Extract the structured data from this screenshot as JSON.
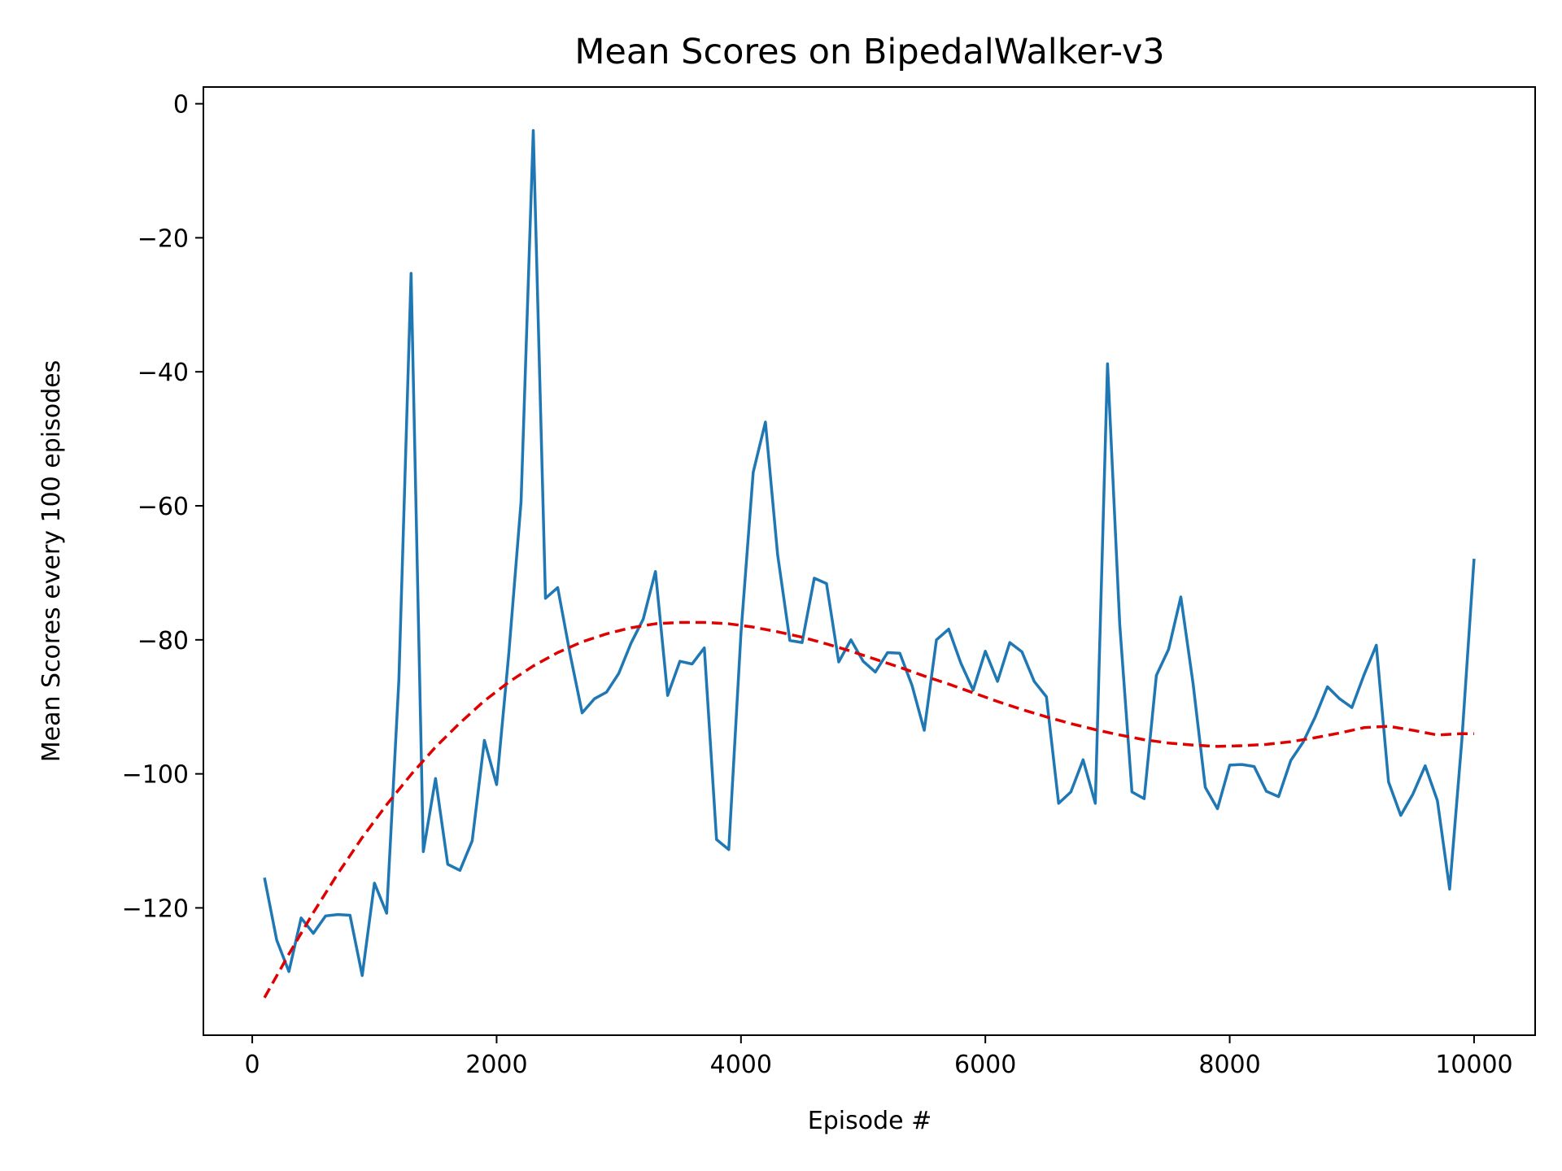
{
  "chart_data": {
    "type": "line",
    "title": "Mean Scores on BipedalWalker-v3",
    "xlabel": "Episode #",
    "ylabel": "Mean Scores every 100 episodes",
    "xlim": [
      -400,
      10500
    ],
    "ylim": [
      -139,
      2.5
    ],
    "xticks": [
      0,
      2000,
      4000,
      6000,
      8000,
      10000
    ],
    "xtick_labels": [
      "0",
      "2000",
      "4000",
      "6000",
      "8000",
      "10000"
    ],
    "yticks": [
      0,
      -20,
      -40,
      -60,
      -80,
      -100,
      -120
    ],
    "ytick_labels": [
      "0",
      "−20",
      "−40",
      "−60",
      "−80",
      "−100",
      "−120"
    ],
    "grid": false,
    "colors": {
      "scores": "#1f77b4",
      "trend": "#e00000"
    },
    "series": [
      {
        "style": "solid",
        "x": [
          100,
          200,
          300,
          400,
          500,
          600,
          700,
          800,
          900,
          1000,
          1100,
          1200,
          1300,
          1400,
          1500,
          1600,
          1700,
          1800,
          1900,
          2000,
          2100,
          2200,
          2300,
          2400,
          2500,
          2600,
          2700,
          2800,
          2900,
          3000,
          3100,
          3200,
          3300,
          3400,
          3500,
          3600,
          3700,
          3800,
          3900,
          4000,
          4100,
          4200,
          4300,
          4400,
          4500,
          4600,
          4700,
          4800,
          4900,
          5000,
          5100,
          5200,
          5300,
          5400,
          5500,
          5600,
          5700,
          5800,
          5900,
          6000,
          6100,
          6200,
          6300,
          6400,
          6500,
          6600,
          6700,
          6800,
          6900,
          7000,
          7100,
          7200,
          7300,
          7400,
          7500,
          7600,
          7700,
          7800,
          7900,
          8000,
          8100,
          8200,
          8300,
          8400,
          8500,
          8600,
          8700,
          8800,
          8900,
          9000,
          9100,
          9200,
          9300,
          9400,
          9500,
          9600,
          9700,
          9800,
          9900,
          10000
        ],
        "values": [
          -115.5,
          -124.8,
          -129.5,
          -121.5,
          -123.8,
          -121.2,
          -121.0,
          -121.1,
          -130.1,
          -116.3,
          -120.8,
          -86.0,
          -25.3,
          -111.6,
          -100.7,
          -113.5,
          -114.4,
          -110.0,
          -95.0,
          -101.6,
          -82.0,
          -59.4,
          -4.0,
          -73.8,
          -72.2,
          -82.0,
          -90.9,
          -88.8,
          -87.8,
          -85.0,
          -80.5,
          -76.9,
          -69.8,
          -88.3,
          -83.2,
          -83.6,
          -81.2,
          -109.8,
          -111.3,
          -79.0,
          -55.0,
          -47.5,
          -67.3,
          -80.1,
          -80.4,
          -70.8,
          -71.6,
          -83.3,
          -80.0,
          -83.2,
          -84.8,
          -81.9,
          -82.0,
          -86.8,
          -93.5,
          -80.0,
          -78.4,
          -83.5,
          -87.5,
          -81.7,
          -86.2,
          -80.4,
          -81.8,
          -86.2,
          -88.5,
          -104.4,
          -102.7,
          -97.9,
          -104.4,
          -38.8,
          -77.7,
          -102.7,
          -103.7,
          -85.3,
          -81.4,
          -73.6,
          -86.5,
          -102.0,
          -105.2,
          -98.7,
          -98.6,
          -98.9,
          -102.6,
          -103.4,
          -98.0,
          -95.3,
          -91.5,
          -87.0,
          -88.8,
          -90.1,
          -85.2,
          -80.8,
          -101.2,
          -106.2,
          -103.0,
          -98.8,
          -104.0,
          -117.2,
          -95.0,
          -67.9
        ]
      },
      {
        "style": "dashed",
        "x": [
          100,
          300,
          500,
          700,
          900,
          1100,
          1300,
          1500,
          1700,
          1900,
          2100,
          2300,
          2500,
          2700,
          2900,
          3100,
          3300,
          3500,
          3700,
          3900,
          4100,
          4300,
          4500,
          4700,
          4900,
          5100,
          5300,
          5500,
          5700,
          5900,
          6100,
          6300,
          6500,
          6700,
          6900,
          7100,
          7300,
          7500,
          7700,
          7900,
          8100,
          8300,
          8500,
          8700,
          8900,
          9100,
          9300,
          9500,
          9700,
          9900,
          10000
        ],
        "values": [
          -133.4,
          -126.9,
          -120.7,
          -114.9,
          -109.5,
          -104.6,
          -100.1,
          -96.0,
          -92.4,
          -89.1,
          -86.3,
          -83.9,
          -81.9,
          -80.3,
          -79.1,
          -78.2,
          -77.6,
          -77.4,
          -77.4,
          -77.6,
          -78.1,
          -78.8,
          -79.6,
          -80.6,
          -81.7,
          -82.9,
          -84.1,
          -85.4,
          -86.6,
          -87.9,
          -89.2,
          -90.4,
          -91.5,
          -92.5,
          -93.4,
          -94.2,
          -94.9,
          -95.4,
          -95.7,
          -95.9,
          -95.8,
          -95.6,
          -95.2,
          -94.6,
          -93.9,
          -93.1,
          -92.9,
          -93.5,
          -94.2,
          -94.0,
          -94.0
        ]
      }
    ]
  }
}
